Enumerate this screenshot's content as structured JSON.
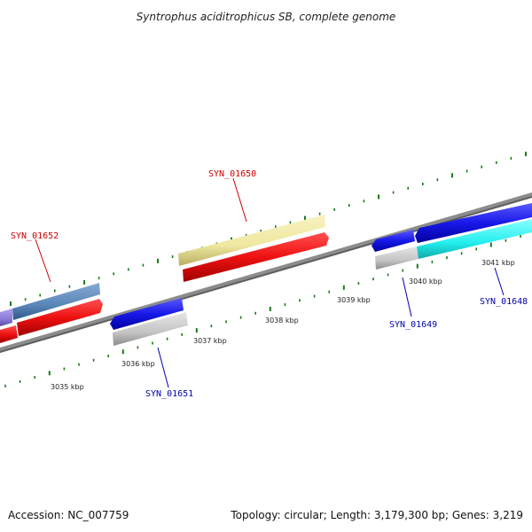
{
  "header": {
    "title": "Syntrophus aciditrophicus SB, complete genome"
  },
  "footer": {
    "accession": "Accession: NC_007759",
    "summary": "Topology: circular; Length: 3,179,300 bp; Genes: 3,219"
  },
  "scale": {
    "ticks": [
      "3035 kbp",
      "3036 kbp",
      "3037 kbp",
      "3038 kbp",
      "3039 kbp",
      "3040 kbp",
      "3041 kbp"
    ]
  },
  "genes": [
    {
      "locus": "SYN_01652",
      "strand": "forward",
      "color": "#cc0000"
    },
    {
      "locus": "SYN_01650",
      "strand": "forward",
      "color": "#cc0000"
    },
    {
      "locus": "SYN_01651",
      "strand": "reverse",
      "color": "#0000aa"
    },
    {
      "locus": "SYN_01649",
      "strand": "reverse",
      "color": "#0000aa"
    },
    {
      "locus": "SYN_01648",
      "strand": "reverse",
      "color": "#0000aa"
    }
  ],
  "colors": {
    "backbone": "#8c8c8c",
    "cds_red": "#ee1111",
    "cds_blue": "#1818e8",
    "gene_yellow": "#efe7a0",
    "gene_steelblue": "#5a86b8",
    "gene_cyan": "#22eeee",
    "gene_gray": "#c4c4c4",
    "gene_purple": "#8a7ad8",
    "tick_green": "#1a7a1a"
  }
}
